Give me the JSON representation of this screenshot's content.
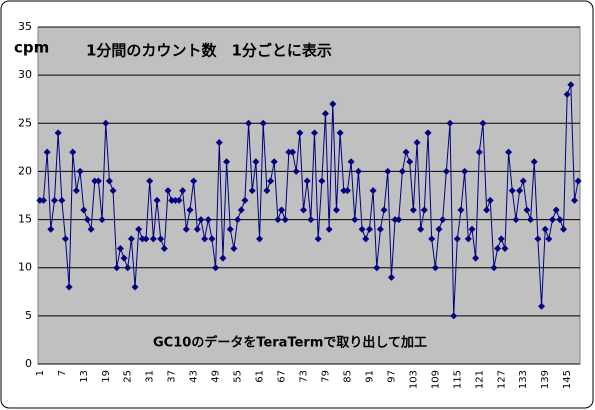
{
  "chart_data": {
    "type": "line",
    "title": "1分間のカウント数　1分ごとに表示",
    "ylabel": "cpm",
    "annotation": "GC10のデータをTeraTermで取り出して加工",
    "categories": [
      1,
      null,
      null,
      null,
      null,
      null,
      7,
      null,
      null,
      null,
      null,
      null,
      13,
      null,
      null,
      null,
      null,
      null,
      19,
      null,
      null,
      null,
      null,
      null,
      25,
      null,
      null,
      null,
      null,
      null,
      31,
      null,
      null,
      null,
      null,
      null,
      37,
      null,
      null,
      null,
      null,
      null,
      43,
      null,
      null,
      null,
      null,
      null,
      49,
      null,
      null,
      null,
      null,
      null,
      55,
      null,
      null,
      null,
      null,
      null,
      61,
      null,
      null,
      null,
      null,
      null,
      67,
      null,
      null,
      null,
      null,
      null,
      73,
      null,
      null,
      null,
      null,
      null,
      79,
      null,
      null,
      null,
      null,
      null,
      85,
      null,
      null,
      null,
      null,
      null,
      91,
      null,
      null,
      null,
      null,
      null,
      97,
      null,
      null,
      null,
      null,
      null,
      103,
      null,
      null,
      null,
      null,
      null,
      109,
      null,
      null,
      null,
      null,
      null,
      115,
      null,
      null,
      null,
      null,
      null,
      121,
      null,
      null,
      null,
      null,
      null,
      127,
      null,
      null,
      null,
      null,
      null,
      133,
      null,
      null,
      null,
      null,
      null,
      139,
      null,
      null,
      null,
      null,
      null,
      145,
      null,
      null,
      null
    ],
    "series": [
      {
        "color": "#000080",
        "values": [
          17,
          17,
          22,
          14,
          17,
          24,
          17,
          13,
          8,
          22,
          18,
          20,
          16,
          15,
          14,
          19,
          19,
          15,
          25,
          19,
          18,
          10,
          12,
          11,
          10,
          13,
          8,
          14,
          13,
          13,
          19,
          13,
          17,
          13,
          12,
          18,
          17,
          17,
          17,
          18,
          14,
          16,
          19,
          14,
          15,
          13,
          15,
          13,
          10,
          23,
          11,
          21,
          14,
          12,
          15,
          16,
          17,
          25,
          18,
          21,
          13,
          25,
          18,
          19,
          21,
          15,
          16,
          15,
          22,
          22,
          20,
          24,
          16,
          19,
          15,
          24,
          13,
          19,
          26,
          14,
          27,
          16,
          24,
          18,
          18,
          21,
          15,
          20,
          14,
          13,
          14,
          18,
          10,
          14,
          16,
          20,
          9,
          15,
          15,
          20,
          22,
          21,
          16,
          23,
          14,
          16,
          24,
          13,
          10,
          14,
          15,
          20,
          25,
          5,
          13,
          16,
          20,
          13,
          14,
          11,
          22,
          25,
          16,
          17,
          10,
          12,
          13,
          12,
          22,
          18,
          15,
          18,
          19,
          16,
          15,
          21,
          13,
          6,
          14,
          13,
          15,
          16,
          15,
          14,
          28,
          29,
          17,
          19
        ]
      }
    ],
    "ylim": [
      0,
      35
    ],
    "yticks": [
      0,
      5,
      10,
      15,
      20,
      25,
      30,
      35
    ],
    "grid": true
  }
}
